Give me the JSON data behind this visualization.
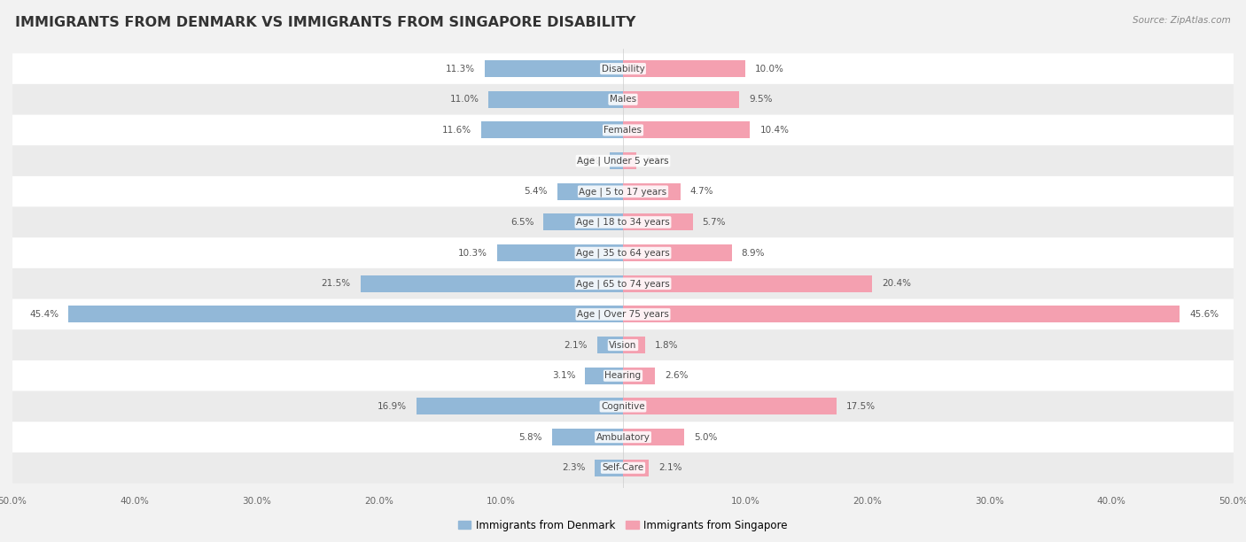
{
  "title": "IMMIGRANTS FROM DENMARK VS IMMIGRANTS FROM SINGAPORE DISABILITY",
  "source": "Source: ZipAtlas.com",
  "categories": [
    "Disability",
    "Males",
    "Females",
    "Age | Under 5 years",
    "Age | 5 to 17 years",
    "Age | 18 to 34 years",
    "Age | 35 to 64 years",
    "Age | 65 to 74 years",
    "Age | Over 75 years",
    "Vision",
    "Hearing",
    "Cognitive",
    "Ambulatory",
    "Self-Care"
  ],
  "denmark_values": [
    11.3,
    11.0,
    11.6,
    1.1,
    5.4,
    6.5,
    10.3,
    21.5,
    45.4,
    2.1,
    3.1,
    16.9,
    5.8,
    2.3
  ],
  "singapore_values": [
    10.0,
    9.5,
    10.4,
    1.1,
    4.7,
    5.7,
    8.9,
    20.4,
    45.6,
    1.8,
    2.6,
    17.5,
    5.0,
    2.1
  ],
  "denmark_color": "#92b8d8",
  "singapore_color": "#f4a0b0",
  "denmark_label": "Immigrants from Denmark",
  "singapore_label": "Immigrants from Singapore",
  "axis_max": 50.0,
  "background_color": "#f2f2f2",
  "row_colors": [
    "#ffffff",
    "#ebebeb"
  ],
  "title_fontsize": 11.5,
  "label_fontsize": 7.5,
  "value_fontsize": 7.5,
  "legend_fontsize": 8.5,
  "source_fontsize": 7.5
}
